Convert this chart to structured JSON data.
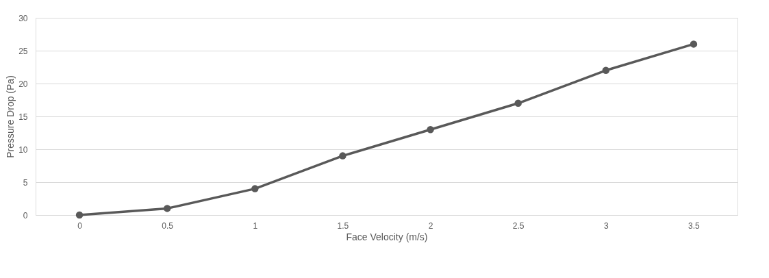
{
  "chart_data": {
    "type": "line",
    "xlabel": "Face Velocity (m/s)",
    "ylabel": "Pressure Drop (Pa)",
    "categories": [
      "0",
      "0.5",
      "1",
      "1.5",
      "2",
      "2.5",
      "3",
      "3.5"
    ],
    "series": [
      {
        "color": "#595959",
        "values": [
          0,
          1,
          4,
          9,
          13,
          17,
          22,
          26
        ]
      }
    ],
    "ylim": [
      0,
      30
    ],
    "yticks": [
      0,
      5,
      10,
      15,
      20,
      25,
      30
    ],
    "grid": "y",
    "marker": "circle",
    "line_style": "solid"
  }
}
